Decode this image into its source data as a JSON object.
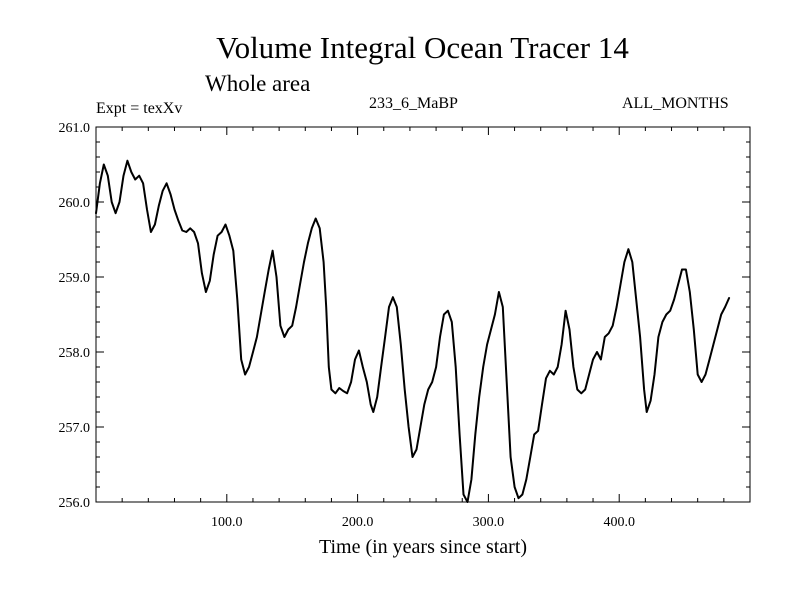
{
  "chart_data": {
    "type": "line",
    "title": "Volume Integral Ocean Tracer 14",
    "subtitle": "Whole area",
    "annotations": {
      "experiment": "Expt = texXv",
      "run": "233_6_MaBP",
      "months": "ALL_MONTHS"
    },
    "xlabel": "Time (in years since start)",
    "ylabel": "",
    "xlim": [
      0,
      500
    ],
    "ylim": [
      256.0,
      261.0
    ],
    "x_tick_labels": [
      {
        "value": 100,
        "label": "100.0"
      },
      {
        "value": 200,
        "label": "200.0"
      },
      {
        "value": 300,
        "label": "300.0"
      },
      {
        "value": 400,
        "label": "400.0"
      }
    ],
    "y_tick_labels": [
      {
        "value": 256.0,
        "label": "256.0"
      },
      {
        "value": 257.0,
        "label": "257.0"
      },
      {
        "value": 258.0,
        "label": "258.0"
      },
      {
        "value": 259.0,
        "label": "259.0"
      },
      {
        "value": 260.0,
        "label": "260.0"
      },
      {
        "value": 261.0,
        "label": "261.0"
      }
    ],
    "x_minor_step": 20,
    "y_minor_step": 0.2,
    "grid": false,
    "legend": "none",
    "series": [
      {
        "name": "Volume Integral Ocean Tracer 14",
        "color": "#000000",
        "points": [
          [
            0,
            259.85
          ],
          [
            3,
            260.25
          ],
          [
            6,
            260.5
          ],
          [
            9,
            260.35
          ],
          [
            12,
            260.0
          ],
          [
            15,
            259.85
          ],
          [
            18,
            260.0
          ],
          [
            21,
            260.35
          ],
          [
            24,
            260.55
          ],
          [
            27,
            260.4
          ],
          [
            30,
            260.3
          ],
          [
            33,
            260.35
          ],
          [
            36,
            260.25
          ],
          [
            39,
            259.9
          ],
          [
            42,
            259.6
          ],
          [
            45,
            259.7
          ],
          [
            48,
            259.95
          ],
          [
            51,
            260.15
          ],
          [
            54,
            260.25
          ],
          [
            57,
            260.1
          ],
          [
            60,
            259.9
          ],
          [
            63,
            259.75
          ],
          [
            66,
            259.62
          ],
          [
            69,
            259.6
          ],
          [
            72,
            259.65
          ],
          [
            75,
            259.6
          ],
          [
            78,
            259.45
          ],
          [
            81,
            259.05
          ],
          [
            84,
            258.8
          ],
          [
            87,
            258.95
          ],
          [
            90,
            259.3
          ],
          [
            93,
            259.55
          ],
          [
            96,
            259.6
          ],
          [
            99,
            259.7
          ],
          [
            102,
            259.55
          ],
          [
            105,
            259.35
          ],
          [
            108,
            258.7
          ],
          [
            111,
            257.9
          ],
          [
            114,
            257.7
          ],
          [
            117,
            257.8
          ],
          [
            120,
            258.0
          ],
          [
            123,
            258.2
          ],
          [
            126,
            258.5
          ],
          [
            129,
            258.8
          ],
          [
            132,
            259.1
          ],
          [
            135,
            259.35
          ],
          [
            138,
            259.0
          ],
          [
            141,
            258.35
          ],
          [
            144,
            258.2
          ],
          [
            147,
            258.3
          ],
          [
            150,
            258.35
          ],
          [
            153,
            258.6
          ],
          [
            156,
            258.9
          ],
          [
            159,
            259.2
          ],
          [
            162,
            259.45
          ],
          [
            165,
            259.65
          ],
          [
            168,
            259.78
          ],
          [
            171,
            259.65
          ],
          [
            174,
            259.2
          ],
          [
            176,
            258.6
          ],
          [
            178,
            257.8
          ],
          [
            180,
            257.5
          ],
          [
            183,
            257.45
          ],
          [
            186,
            257.52
          ],
          [
            189,
            257.48
          ],
          [
            192,
            257.45
          ],
          [
            195,
            257.6
          ],
          [
            198,
            257.9
          ],
          [
            201,
            258.02
          ],
          [
            204,
            257.8
          ],
          [
            207,
            257.6
          ],
          [
            210,
            257.3
          ],
          [
            212,
            257.2
          ],
          [
            215,
            257.4
          ],
          [
            218,
            257.8
          ],
          [
            221,
            258.2
          ],
          [
            224,
            258.6
          ],
          [
            227,
            258.73
          ],
          [
            230,
            258.6
          ],
          [
            233,
            258.1
          ],
          [
            236,
            257.5
          ],
          [
            239,
            257.0
          ],
          [
            242,
            256.6
          ],
          [
            245,
            256.7
          ],
          [
            248,
            257.0
          ],
          [
            251,
            257.3
          ],
          [
            254,
            257.5
          ],
          [
            257,
            257.6
          ],
          [
            260,
            257.8
          ],
          [
            263,
            258.2
          ],
          [
            266,
            258.5
          ],
          [
            269,
            258.55
          ],
          [
            272,
            258.4
          ],
          [
            275,
            257.8
          ],
          [
            278,
            256.9
          ],
          [
            281,
            256.1
          ],
          [
            284,
            256.0
          ],
          [
            287,
            256.3
          ],
          [
            290,
            256.9
          ],
          [
            293,
            257.4
          ],
          [
            296,
            257.8
          ],
          [
            299,
            258.1
          ],
          [
            302,
            258.3
          ],
          [
            305,
            258.5
          ],
          [
            308,
            258.8
          ],
          [
            311,
            258.6
          ],
          [
            314,
            257.6
          ],
          [
            317,
            256.6
          ],
          [
            320,
            256.2
          ],
          [
            323,
            256.05
          ],
          [
            326,
            256.1
          ],
          [
            329,
            256.3
          ],
          [
            332,
            256.6
          ],
          [
            335,
            256.9
          ],
          [
            338,
            256.95
          ],
          [
            341,
            257.3
          ],
          [
            344,
            257.65
          ],
          [
            347,
            257.75
          ],
          [
            350,
            257.7
          ],
          [
            353,
            257.8
          ],
          [
            356,
            258.1
          ],
          [
            359,
            258.55
          ],
          [
            362,
            258.3
          ],
          [
            365,
            257.8
          ],
          [
            368,
            257.5
          ],
          [
            371,
            257.45
          ],
          [
            374,
            257.5
          ],
          [
            377,
            257.7
          ],
          [
            380,
            257.9
          ],
          [
            383,
            258.0
          ],
          [
            386,
            257.9
          ],
          [
            389,
            258.2
          ],
          [
            392,
            258.25
          ],
          [
            395,
            258.35
          ],
          [
            398,
            258.6
          ],
          [
            401,
            258.9
          ],
          [
            404,
            259.2
          ],
          [
            407,
            259.37
          ],
          [
            410,
            259.2
          ],
          [
            413,
            258.7
          ],
          [
            416,
            258.2
          ],
          [
            419,
            257.5
          ],
          [
            421,
            257.2
          ],
          [
            424,
            257.35
          ],
          [
            427,
            257.7
          ],
          [
            430,
            258.2
          ],
          [
            433,
            258.4
          ],
          [
            436,
            258.5
          ],
          [
            439,
            258.55
          ],
          [
            442,
            258.7
          ],
          [
            445,
            258.9
          ],
          [
            448,
            259.1
          ],
          [
            451,
            259.1
          ],
          [
            454,
            258.8
          ],
          [
            457,
            258.3
          ],
          [
            460,
            257.7
          ],
          [
            463,
            257.6
          ],
          [
            466,
            257.7
          ],
          [
            469,
            257.9
          ],
          [
            472,
            258.1
          ],
          [
            475,
            258.3
          ],
          [
            478,
            258.5
          ],
          [
            481,
            258.6
          ],
          [
            484,
            258.72
          ]
        ]
      }
    ]
  }
}
